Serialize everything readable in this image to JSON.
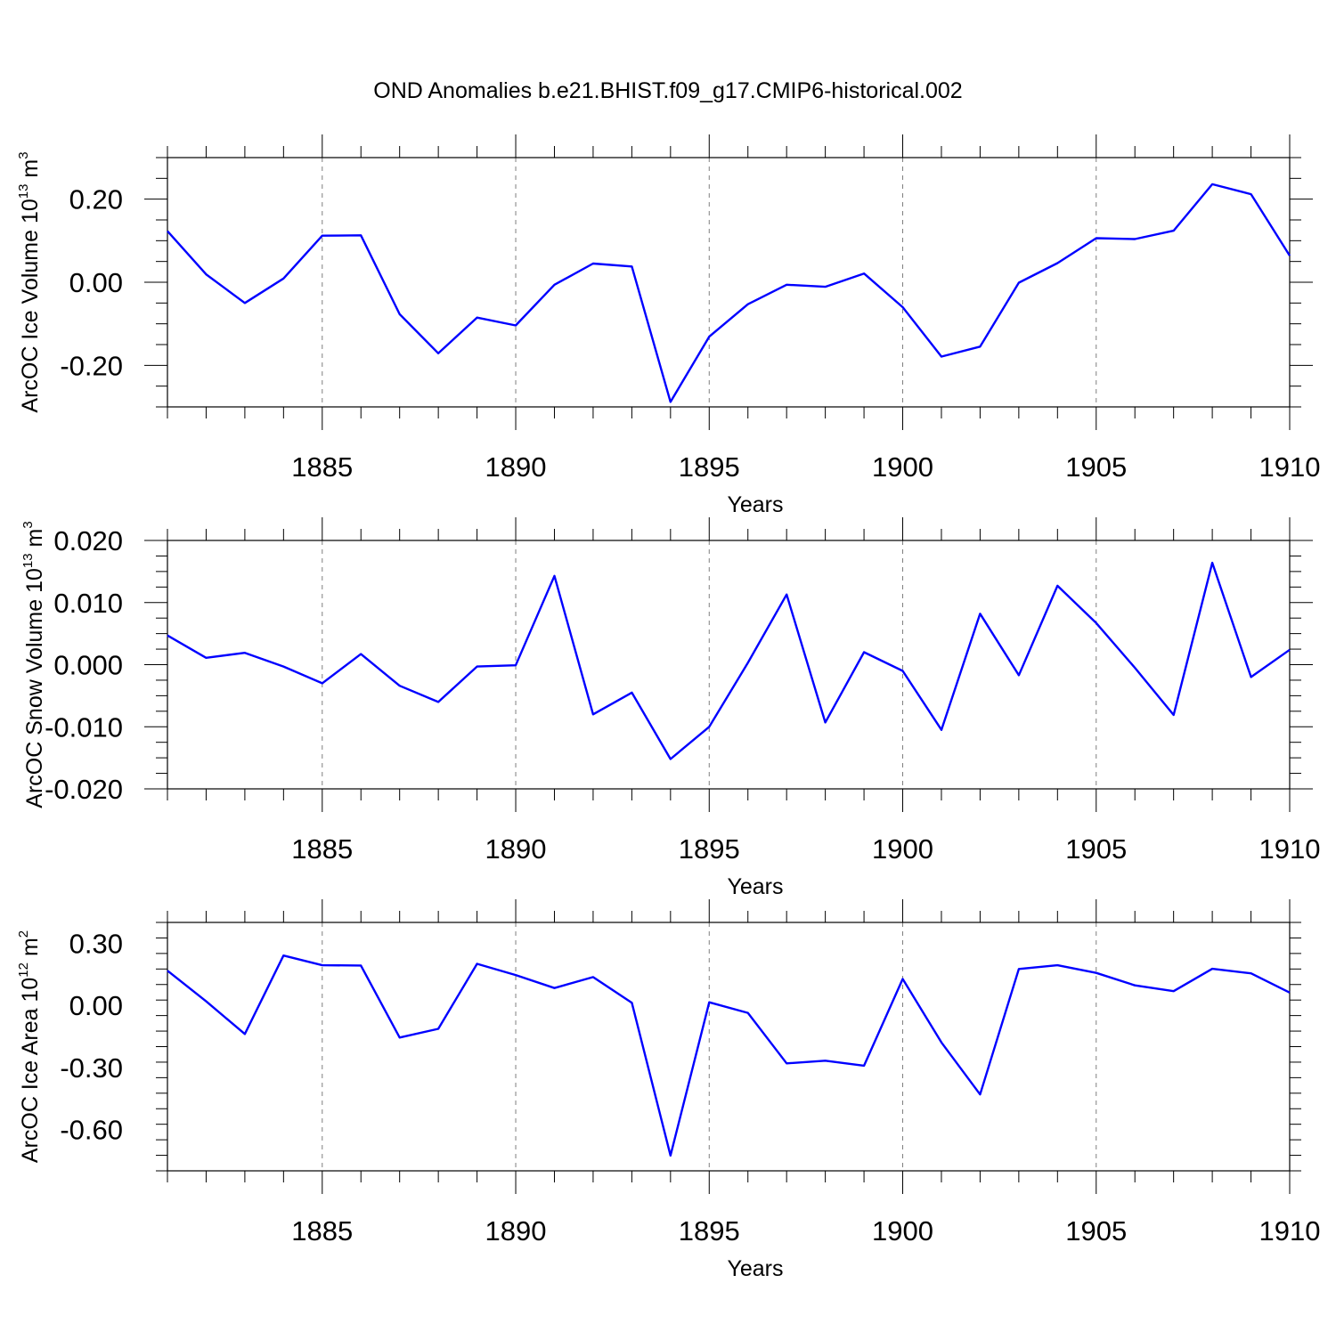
{
  "title": "OND Anomalies b.e21.BHIST.f09_g17.CMIP6-historical.002",
  "colors": {
    "line": "#0000ff",
    "axis": "#000000",
    "grid": "#7f7f7f"
  },
  "chart_data": [
    {
      "type": "line",
      "ylabel": "ArcOC Ice Volume 10",
      "ylabel_exp": "13",
      "ylabel_unit": " m",
      "ylabel_unit_exp": "3",
      "xlabel": "Years",
      "xlim": [
        1881,
        1910
      ],
      "ylim": [
        -0.3,
        0.3
      ],
      "yticks": [
        0.2,
        0.0,
        -0.2
      ],
      "ytick_labels": [
        "0.20",
        "0.00",
        "-0.20"
      ],
      "xticks": [
        1885,
        1890,
        1895,
        1900,
        1905,
        1910
      ],
      "xtick_labels": [
        "1885",
        "1890",
        "1895",
        "1900",
        "1905",
        "1910"
      ],
      "grid_x": [
        1885,
        1890,
        1895,
        1900,
        1905
      ],
      "series": [
        {
          "x": [
            1881,
            1882,
            1883,
            1884,
            1885,
            1886,
            1887,
            1888,
            1889,
            1890,
            1891,
            1892,
            1893,
            1894,
            1895,
            1896,
            1897,
            1898,
            1899,
            1900,
            1901,
            1902,
            1903,
            1904,
            1905,
            1906,
            1907,
            1908,
            1909,
            1910
          ],
          "values": [
            0.123,
            0.019,
            -0.05,
            0.009,
            0.112,
            0.113,
            -0.077,
            -0.171,
            -0.085,
            -0.104,
            -0.006,
            0.045,
            0.038,
            -0.288,
            -0.131,
            -0.053,
            -0.006,
            -0.011,
            0.021,
            -0.06,
            -0.179,
            -0.155,
            -0.001,
            0.046,
            0.106,
            0.104,
            0.124,
            0.236,
            0.212,
            0.064
          ]
        }
      ]
    },
    {
      "type": "line",
      "ylabel": "ArcOC Snow Volume 10",
      "ylabel_exp": "13",
      "ylabel_unit": " m",
      "ylabel_unit_exp": "3",
      "xlabel": "Years",
      "xlim": [
        1881,
        1910
      ],
      "ylim": [
        -0.02,
        0.02
      ],
      "yticks": [
        0.02,
        0.01,
        0.0,
        -0.01,
        -0.02
      ],
      "ytick_labels": [
        "0.020",
        "0.010",
        "0.000",
        "-0.010",
        "-0.020"
      ],
      "xticks": [
        1885,
        1890,
        1895,
        1900,
        1905,
        1910
      ],
      "xtick_labels": [
        "1885",
        "1890",
        "1895",
        "1900",
        "1905",
        "1910"
      ],
      "grid_x": [
        1885,
        1890,
        1895,
        1900,
        1905
      ],
      "series": [
        {
          "x": [
            1881,
            1882,
            1883,
            1884,
            1885,
            1886,
            1887,
            1888,
            1889,
            1890,
            1891,
            1892,
            1893,
            1894,
            1895,
            1896,
            1897,
            1898,
            1899,
            1900,
            1901,
            1902,
            1903,
            1904,
            1905,
            1906,
            1907,
            1908,
            1909,
            1910
          ],
          "values": [
            0.0047,
            0.0011,
            0.0019,
            -0.0003,
            -0.003,
            0.0017,
            -0.0034,
            -0.006,
            -0.0003,
            -0.0001,
            0.0143,
            -0.008,
            -0.0045,
            -0.0152,
            -0.01,
            0.0003,
            0.0113,
            -0.0093,
            0.002,
            -0.001,
            -0.0105,
            0.0082,
            -0.0017,
            0.0127,
            0.0067,
            -0.0005,
            -0.0081,
            0.0164,
            -0.002,
            0.0024
          ]
        }
      ]
    },
    {
      "type": "line",
      "ylabel": "ArcOC Ice Area 10",
      "ylabel_exp": "12",
      "ylabel_unit": " m",
      "ylabel_unit_exp": "2",
      "xlabel": "Years",
      "xlim": [
        1881,
        1910
      ],
      "ylim": [
        -0.8,
        0.4
      ],
      "yticks": [
        0.3,
        0.0,
        -0.3,
        -0.6
      ],
      "ytick_labels": [
        "0.30",
        "0.00",
        "-0.30",
        "-0.60"
      ],
      "xticks": [
        1885,
        1890,
        1895,
        1900,
        1905,
        1910
      ],
      "xtick_labels": [
        "1885",
        "1890",
        "1895",
        "1900",
        "1905",
        "1910"
      ],
      "grid_x": [
        1885,
        1890,
        1895,
        1900,
        1905
      ],
      "series": [
        {
          "x": [
            1881,
            1882,
            1883,
            1884,
            1885,
            1886,
            1887,
            1888,
            1889,
            1890,
            1891,
            1892,
            1893,
            1894,
            1895,
            1896,
            1897,
            1898,
            1899,
            1900,
            1901,
            1902,
            1903,
            1904,
            1905,
            1906,
            1907,
            1908,
            1909,
            1910
          ],
          "values": [
            0.167,
            0.019,
            -0.139,
            0.24,
            0.193,
            0.192,
            -0.156,
            -0.114,
            0.2,
            0.146,
            0.083,
            0.136,
            0.012,
            -0.726,
            0.014,
            -0.037,
            -0.281,
            -0.268,
            -0.292,
            0.127,
            -0.18,
            -0.431,
            0.175,
            0.193,
            0.156,
            0.096,
            0.068,
            0.176,
            0.154,
            0.061
          ]
        }
      ]
    }
  ]
}
